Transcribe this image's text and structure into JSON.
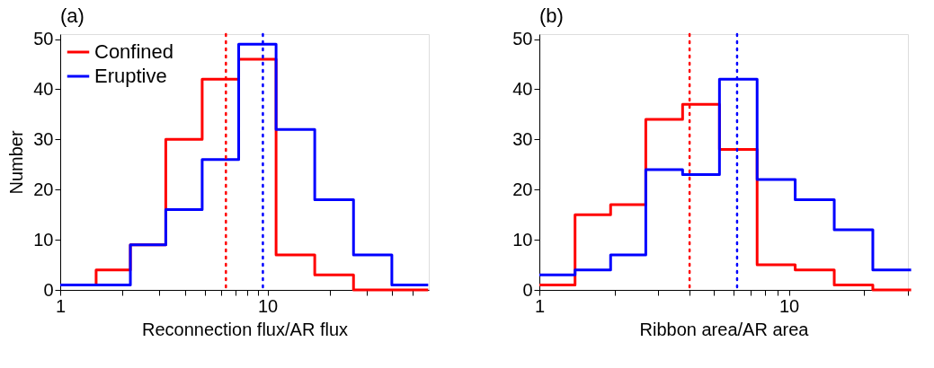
{
  "chart_data": [
    {
      "type": "histogram",
      "title": "(a)",
      "xlabel": "Reconnection flux/AR flux",
      "ylabel": "Number",
      "log": "x",
      "bins": [
        1,
        1.49,
        2.18,
        3.23,
        4.84,
        7.26,
        11.0,
        16.9,
        26.0,
        39.8,
        59.6
      ],
      "series": [
        {
          "name": "Confined",
          "color": "#ff0000",
          "values": [
            1,
            4,
            9,
            30,
            42,
            46,
            7,
            3,
            0,
            0
          ]
        },
        {
          "name": "Eruptive",
          "color": "#0000ff",
          "values": [
            1,
            1,
            9,
            16,
            26,
            49,
            32,
            18,
            7,
            1
          ]
        }
      ],
      "xlim": [
        1,
        60
      ],
      "xticks": [
        1,
        {
          "value": 2,
          "label": null
        },
        {
          "value": 3,
          "label": null
        },
        {
          "value": 4,
          "label": null
        },
        {
          "value": 5,
          "label": null
        },
        {
          "value": 6,
          "label": null
        },
        {
          "value": 7,
          "label": null
        },
        {
          "value": 8,
          "label": null
        },
        {
          "value": 9,
          "label": null
        },
        10,
        {
          "value": 20,
          "label": null
        },
        {
          "value": 30,
          "label": null
        },
        {
          "value": 40,
          "label": null
        },
        {
          "value": 50,
          "label": null
        }
      ],
      "ylim": [
        0,
        51
      ],
      "yticks": [
        0,
        10,
        20,
        30,
        40,
        50
      ],
      "ref_lines": [
        {
          "axis": "x",
          "value": 6.3,
          "color": "#ff0000",
          "line_style": "dotted"
        },
        {
          "axis": "x",
          "value": 9.5,
          "color": "#0000ff",
          "line_style": "dotted"
        }
      ],
      "grid": false,
      "legend": "top left"
    },
    {
      "type": "histogram",
      "title": "(b)",
      "xlabel": "Ribbon area/AR area",
      "log": "x",
      "bins": [
        1,
        1.39,
        1.93,
        2.67,
        3.75,
        5.27,
        7.46,
        10.6,
        15.2,
        21.7,
        30.9
      ],
      "series": [
        {
          "color": "#ff0000",
          "values": [
            1,
            15,
            17,
            34,
            37,
            28,
            5,
            4,
            1,
            0
          ]
        },
        {
          "color": "#0000ff",
          "values": [
            3,
            4,
            7,
            24,
            23,
            42,
            22,
            18,
            12,
            4
          ]
        }
      ],
      "xlim": [
        1,
        30
      ],
      "xticks": [
        1,
        {
          "value": 2,
          "label": null
        },
        {
          "value": 3,
          "label": null
        },
        {
          "value": 4,
          "label": null
        },
        {
          "value": 5,
          "label": null
        },
        {
          "value": 6,
          "label": null
        },
        {
          "value": 7,
          "label": null
        },
        {
          "value": 8,
          "label": null
        },
        {
          "value": 9,
          "label": null
        },
        10,
        {
          "value": 20,
          "label": null
        },
        {
          "value": 30,
          "label": null
        }
      ],
      "ylim": [
        0,
        51
      ],
      "yticks": [
        0,
        10,
        20,
        30,
        40,
        50
      ],
      "ref_lines": [
        {
          "axis": "x",
          "value": 4.0,
          "color": "#ff0000",
          "line_style": "dotted"
        },
        {
          "axis": "x",
          "value": 6.2,
          "color": "#0000ff",
          "line_style": "dotted"
        }
      ],
      "grid": false
    }
  ]
}
